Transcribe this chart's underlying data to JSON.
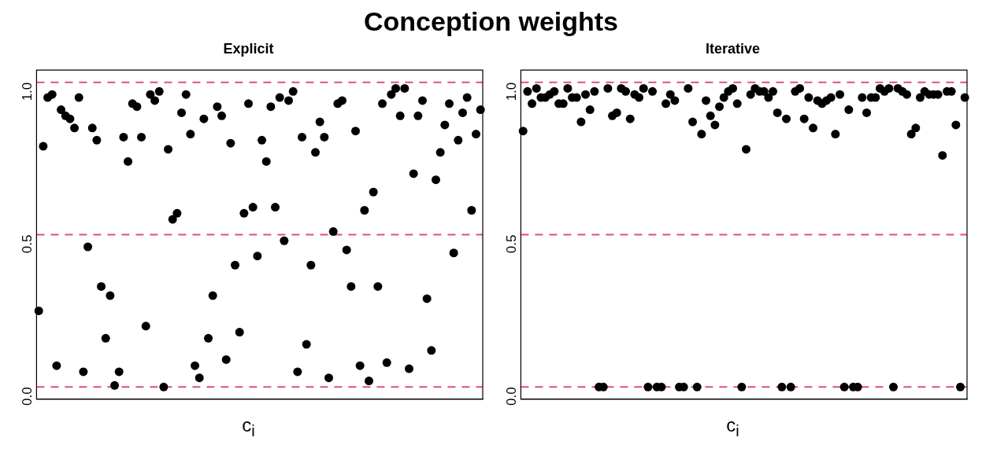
{
  "chart_data": [
    {
      "type": "scatter",
      "title": "Conception weights",
      "subtitle": "Explicit",
      "xlabel": "c$_{i}$",
      "categories": [
        null,
        null,
        null,
        null,
        null,
        null,
        null,
        null,
        null,
        null,
        null,
        null,
        null,
        null,
        null,
        null,
        null,
        null,
        null,
        null,
        null,
        null,
        null,
        null,
        null,
        null,
        null,
        null,
        null,
        null,
        null,
        null,
        null,
        null,
        null,
        null,
        null,
        null,
        null,
        null,
        null,
        null,
        null,
        null,
        null,
        null,
        null,
        null,
        null,
        null,
        null,
        null,
        null,
        null,
        null,
        null,
        null,
        null,
        null,
        null,
        null,
        null,
        null,
        null,
        null,
        null,
        null,
        null,
        null,
        null,
        null,
        null,
        null,
        null,
        null,
        null,
        null,
        null,
        null,
        null,
        null,
        null,
        null,
        null,
        null,
        null,
        null,
        null,
        null,
        null,
        null,
        null,
        null,
        null,
        null,
        null,
        null,
        null,
        null,
        null
      ],
      "series": [
        {
          "color": "#000000",
          "values": [
            0.25,
            0.79,
            0.95,
            0.96,
            0.07,
            0.91,
            0.89,
            0.88,
            0.85,
            0.95,
            0.05,
            0.46,
            0.85,
            0.81,
            0.33,
            0.16,
            0.3,
            0.005,
            0.05,
            0.82,
            0.74,
            0.93,
            0.92,
            0.82,
            0.2,
            0.96,
            0.94,
            0.97,
            0.0,
            0.78,
            0.55,
            0.57,
            0.9,
            0.96,
            0.83,
            0.07,
            0.03,
            0.88,
            0.16,
            0.3,
            0.92,
            0.89,
            0.09,
            0.8,
            0.4,
            0.18,
            0.57,
            0.93,
            0.59,
            0.43,
            0.81,
            0.74,
            0.92,
            0.59,
            0.95,
            0.48,
            0.94,
            0.97,
            0.05,
            0.82,
            0.14,
            0.4,
            0.77,
            0.87,
            0.82,
            0.03,
            0.51,
            0.93,
            0.94,
            0.45,
            0.33,
            0.84,
            0.07,
            0.58,
            0.02,
            0.64,
            0.33,
            0.93,
            0.08,
            0.96,
            0.98,
            0.89,
            0.98,
            0.06,
            0.7,
            0.89,
            0.94,
            0.29,
            0.12,
            0.68,
            0.77,
            0.86,
            0.93,
            0.44,
            0.81,
            0.9,
            0.95,
            0.58,
            0.83,
            0.91
          ]
        }
      ],
      "ylim": [
        -0.04,
        1.04
      ],
      "yticks": [
        {
          "value": 0,
          "label": "0.0"
        },
        {
          "value": 0.5,
          "label": "0.5"
        },
        {
          "value": 1,
          "label": "1.0"
        }
      ],
      "tick_labels": "y",
      "marker": "circle",
      "grid": false,
      "legend": false,
      "ref_lines": [
        {
          "axis": "y",
          "value": 0,
          "color": "#df536b",
          "line_style": "dashed"
        },
        {
          "axis": "y",
          "value": 0.5,
          "color": "#df536b",
          "line_style": "dashed"
        },
        {
          "axis": "y",
          "value": 1,
          "color": "#df536b",
          "line_style": "dashed"
        }
      ]
    },
    {
      "type": "scatter",
      "subtitle": "Iterative",
      "xlabel": "c$_{i}$",
      "categories": [
        null,
        null,
        null,
        null,
        null,
        null,
        null,
        null,
        null,
        null,
        null,
        null,
        null,
        null,
        null,
        null,
        null,
        null,
        null,
        null,
        null,
        null,
        null,
        null,
        null,
        null,
        null,
        null,
        null,
        null,
        null,
        null,
        null,
        null,
        null,
        null,
        null,
        null,
        null,
        null,
        null,
        null,
        null,
        null,
        null,
        null,
        null,
        null,
        null,
        null,
        null,
        null,
        null,
        null,
        null,
        null,
        null,
        null,
        null,
        null,
        null,
        null,
        null,
        null,
        null,
        null,
        null,
        null,
        null,
        null,
        null,
        null,
        null,
        null,
        null,
        null,
        null,
        null,
        null,
        null,
        null,
        null,
        null,
        null,
        null,
        null,
        null,
        null,
        null,
        null,
        null,
        null,
        null,
        null,
        null,
        null,
        null,
        null,
        null,
        null
      ],
      "series": [
        {
          "color": "#000000",
          "values": [
            0.84,
            0.97,
            0.93,
            0.98,
            0.95,
            0.95,
            0.96,
            0.97,
            0.93,
            0.93,
            0.98,
            0.95,
            0.95,
            0.87,
            0.96,
            0.91,
            0.97,
            0,
            0,
            0.98,
            0.89,
            0.9,
            0.98,
            0.97,
            0.88,
            0.96,
            0.95,
            0.98,
            0,
            0.97,
            0,
            0,
            0.93,
            0.96,
            0.94,
            0,
            0,
            0.98,
            0.87,
            0,
            0.83,
            0.94,
            0.89,
            0.86,
            0.92,
            0.95,
            0.97,
            0.98,
            0.93,
            0,
            0.78,
            0.96,
            0.98,
            0.97,
            0.97,
            0.95,
            0.97,
            0.9,
            0,
            0.88,
            0,
            0.97,
            0.98,
            0.88,
            0.95,
            0.85,
            0.94,
            0.93,
            0.94,
            0.95,
            0.83,
            0.96,
            0,
            0.91,
            0,
            0,
            0.95,
            0.9,
            0.95,
            0.95,
            0.98,
            0.97,
            0.98,
            0,
            0.98,
            0.97,
            0.96,
            0.83,
            0.85,
            0.95,
            0.97,
            0.96,
            0.96,
            0.96,
            0.76,
            0.97,
            0.97,
            0.86,
            0,
            0.95
          ]
        }
      ],
      "ylim": [
        -0.04,
        1.04
      ],
      "yticks": [
        {
          "value": 0,
          "label": "0.0"
        },
        {
          "value": 0.5,
          "label": "0.5"
        },
        {
          "value": 1,
          "label": "1.0"
        }
      ],
      "tick_labels": "y",
      "marker": "circle",
      "grid": false,
      "legend": false,
      "ref_lines": [
        {
          "axis": "y",
          "value": 0,
          "color": "#df536b",
          "line_style": "dashed"
        },
        {
          "axis": "y",
          "value": 0.5,
          "color": "#df536b",
          "line_style": "dashed"
        },
        {
          "axis": "y",
          "value": 1,
          "color": "#df536b",
          "line_style": "dashed"
        }
      ]
    }
  ]
}
